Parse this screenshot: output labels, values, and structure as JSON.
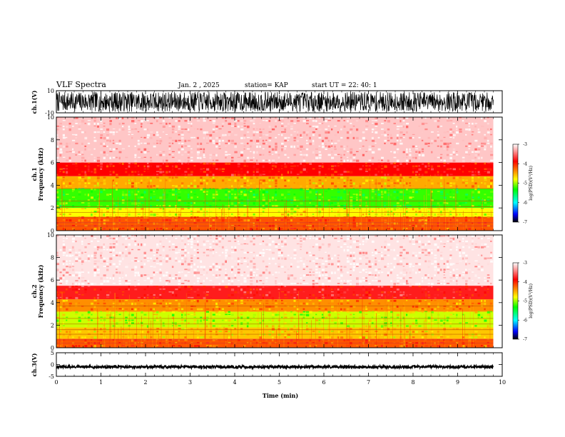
{
  "header": {
    "title": "VLF Spectra",
    "date": "Jan. 2 , 2025",
    "station": "station= KAP",
    "start": "start UT =  22: 40: 1"
  },
  "chart_data": [
    {
      "type": "line",
      "name": "ch1-waveform",
      "ylabel": "ch.1(V)",
      "ylim": [
        -10,
        10
      ],
      "y_ticks": [
        "10",
        "-10"
      ],
      "xlim": [
        0,
        10
      ],
      "x_unit": "min",
      "data_end_min": 9.8,
      "description_values": "dense oscillation between about -9 and 9 V"
    },
    {
      "type": "heatmap",
      "name": "ch1-spectrogram",
      "ylabel": "ch.1\nFrequency (kHz)",
      "ylim": [
        0,
        10
      ],
      "y_ticks": [
        "0",
        "2",
        "4",
        "6",
        "8",
        "10"
      ],
      "xlim": [
        0,
        9.8
      ],
      "colorbar": {
        "label": "log(PSD)(V²/Hz)",
        "range": [
          -7,
          -3
        ],
        "ticks": [
          "-3",
          "-4",
          "-5",
          "-6",
          "-7"
        ]
      },
      "bands": [
        {
          "from_khz": 0,
          "to_khz": 1.2,
          "level": -4.2
        },
        {
          "from_khz": 1.2,
          "to_khz": 2.0,
          "level": -4.8
        },
        {
          "from_khz": 2.0,
          "to_khz": 3.7,
          "level": -5.2
        },
        {
          "from_khz": 3.7,
          "to_khz": 4.8,
          "level": -4.5
        },
        {
          "from_khz": 4.8,
          "to_khz": 6.0,
          "level": -3.9
        },
        {
          "from_khz": 6.0,
          "to_khz": 10.0,
          "level": -3.2
        }
      ]
    },
    {
      "type": "heatmap",
      "name": "ch2-spectrogram",
      "ylabel": "ch.2\nFrequency (kHz)",
      "ylim": [
        0,
        10
      ],
      "y_ticks": [
        "0",
        "2",
        "4",
        "6",
        "8",
        "10"
      ],
      "xlim": [
        0,
        9.8
      ],
      "colorbar": {
        "label": "log(PSD)(V²/Hz)",
        "range": [
          -7,
          -3
        ],
        "ticks": [
          "-3",
          "-4",
          "-5",
          "-6",
          "-7"
        ]
      },
      "bands": [
        {
          "from_khz": 0,
          "to_khz": 0.8,
          "level": -4.2
        },
        {
          "from_khz": 0.8,
          "to_khz": 1.8,
          "level": -4.6
        },
        {
          "from_khz": 1.8,
          "to_khz": 3.2,
          "level": -4.9
        },
        {
          "from_khz": 3.2,
          "to_khz": 4.3,
          "level": -4.4
        },
        {
          "from_khz": 4.3,
          "to_khz": 5.5,
          "level": -3.8
        },
        {
          "from_khz": 5.5,
          "to_khz": 10.0,
          "level": -3.1
        }
      ]
    },
    {
      "type": "line",
      "name": "ch3-waveform",
      "ylabel": "ch.3(V)",
      "ylim": [
        -5,
        5
      ],
      "y_ticks": [
        "5",
        "0",
        "-5"
      ],
      "xlim": [
        0,
        10
      ],
      "data_end_min": 9.8,
      "description_values": "near-constant trace around -1 V"
    }
  ],
  "x_axis": {
    "label": "Time (min)",
    "ticks": [
      "0",
      "1",
      "2",
      "3",
      "4",
      "5",
      "6",
      "7",
      "8",
      "9",
      "10"
    ]
  },
  "colors": {
    "axis": "#000000",
    "trace": "#000000",
    "colormap": [
      "#ffffff",
      "#ff0000",
      "#ffff00",
      "#00ff00",
      "#00ffff",
      "#0000ff",
      "#000000"
    ]
  }
}
